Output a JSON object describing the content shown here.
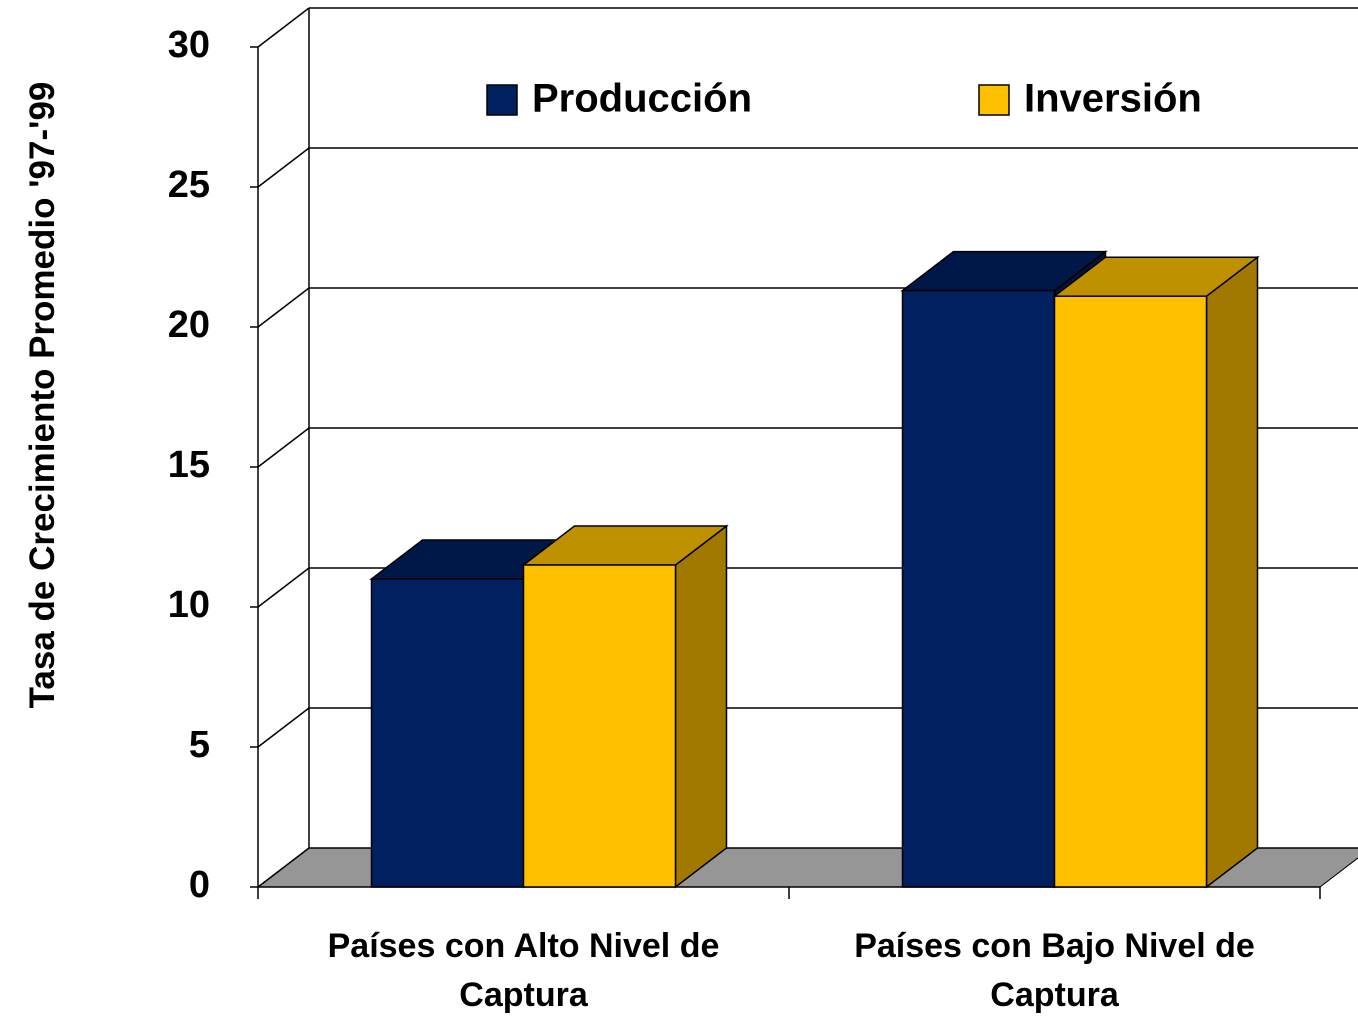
{
  "chart_data": {
    "type": "bar3d",
    "y_label": "Tasa de Crecimiento Promedio '97-'99",
    "categories": [
      "Países con Alto Nivel de Captura",
      "Países con Bajo Nivel de Captura"
    ],
    "series": [
      {
        "name": "Producción",
        "color": "#002060",
        "values": [
          11,
          21.3
        ]
      },
      {
        "name": "Inversión",
        "color": "#ffc000",
        "values": [
          11.5,
          21.1
        ]
      }
    ],
    "ylim": [
      0,
      30
    ],
    "yticks": [
      0,
      5,
      10,
      15,
      20,
      25,
      30
    ],
    "grid": true,
    "legend": "top"
  }
}
